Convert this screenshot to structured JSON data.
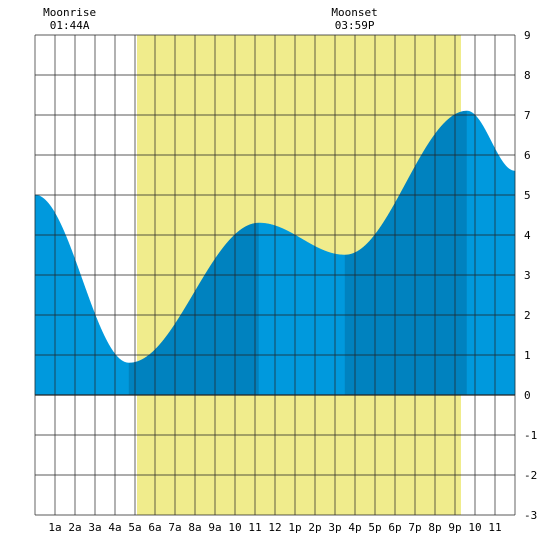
{
  "chart_data": {
    "type": "area",
    "title": "",
    "xlabel": "",
    "ylabel": "",
    "x_unit": "hours",
    "xlim": [
      0,
      24
    ],
    "ylim": [
      -3,
      9
    ],
    "grid": true,
    "x_tick_labels": [
      {
        "hour": 1,
        "label": "1a"
      },
      {
        "hour": 2,
        "label": "2a"
      },
      {
        "hour": 3,
        "label": "3a"
      },
      {
        "hour": 4,
        "label": "4a"
      },
      {
        "hour": 5,
        "label": "5a"
      },
      {
        "hour": 6,
        "label": "6a"
      },
      {
        "hour": 7,
        "label": "7a"
      },
      {
        "hour": 8,
        "label": "8a"
      },
      {
        "hour": 9,
        "label": "9a"
      },
      {
        "hour": 10,
        "label": "10"
      },
      {
        "hour": 11,
        "label": "11"
      },
      {
        "hour": 12,
        "label": "12"
      },
      {
        "hour": 13,
        "label": "1p"
      },
      {
        "hour": 14,
        "label": "2p"
      },
      {
        "hour": 15,
        "label": "3p"
      },
      {
        "hour": 16,
        "label": "4p"
      },
      {
        "hour": 17,
        "label": "5p"
      },
      {
        "hour": 18,
        "label": "6p"
      },
      {
        "hour": 19,
        "label": "7p"
      },
      {
        "hour": 20,
        "label": "8p"
      },
      {
        "hour": 21,
        "label": "9p"
      },
      {
        "hour": 22,
        "label": "10"
      },
      {
        "hour": 23,
        "label": "11"
      }
    ],
    "y_ticks": [
      -3,
      -2,
      -1,
      0,
      1,
      2,
      3,
      4,
      5,
      6,
      7,
      8,
      9
    ],
    "daylight": {
      "start_hour": 5.1,
      "end_hour": 21.3,
      "color": "#f0ec8c"
    },
    "tide_extremes": [
      {
        "hour": 0.0,
        "height": 5.0
      },
      {
        "hour": 4.7,
        "height": 0.8
      },
      {
        "hour": 11.2,
        "height": 4.3
      },
      {
        "hour": 15.5,
        "height": 3.5
      },
      {
        "hour": 21.6,
        "height": 7.1
      },
      {
        "hour": 24.0,
        "height": 5.6
      }
    ],
    "shading_bands": [
      {
        "from": 0.0,
        "to": 4.7,
        "color": "#0099dd"
      },
      {
        "from": 4.7,
        "to": 11.2,
        "color": "#0082bf"
      },
      {
        "from": 11.2,
        "to": 15.5,
        "color": "#0099dd"
      },
      {
        "from": 15.5,
        "to": 21.6,
        "color": "#0082bf"
      },
      {
        "from": 21.6,
        "to": 24.0,
        "color": "#0099dd"
      }
    ],
    "annotations": [
      {
        "id": "moonrise",
        "title": "Moonrise",
        "time": "01:44A",
        "hour": 1.73
      },
      {
        "id": "moonset",
        "title": "Moonset",
        "time": "03:59P",
        "hour": 15.98
      }
    ],
    "colors": {
      "grid": "#222222",
      "background": "#ffffff"
    }
  }
}
